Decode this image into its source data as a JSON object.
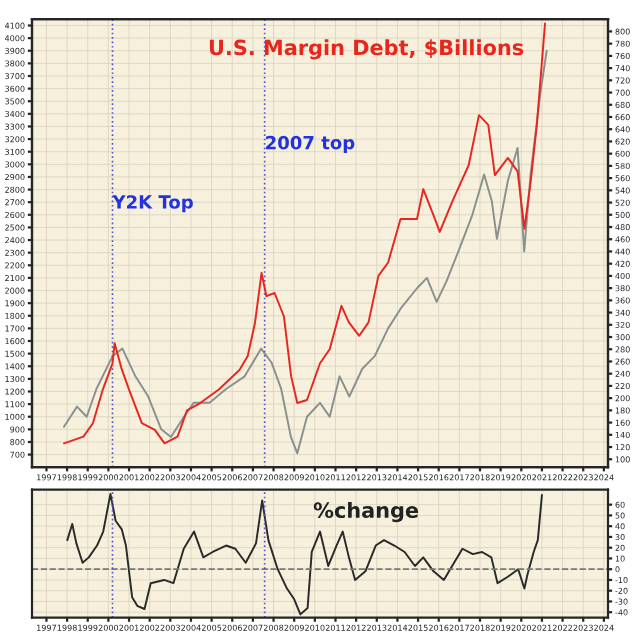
{
  "chart_data": [
    {
      "type": "line",
      "title": "U.S. Margin Debt, $Billions",
      "grid": true,
      "legend": false,
      "xlim": [
        1996.3,
        2024.2
      ],
      "xticks": [
        1997,
        1998,
        1999,
        2000,
        2001,
        2002,
        2003,
        2004,
        2005,
        2006,
        2007,
        2008,
        2009,
        2010,
        2011,
        2012,
        2013,
        2014,
        2015,
        2016,
        2017,
        2018,
        2019,
        2020,
        2021,
        2022,
        2023,
        2024
      ],
      "ylim": [
        600,
        4150
      ],
      "yticks": [
        700,
        800,
        900,
        1000,
        1100,
        1200,
        1300,
        1400,
        1500,
        1600,
        1700,
        1800,
        1900,
        2000,
        2100,
        2200,
        2300,
        2400,
        2500,
        2600,
        2700,
        2800,
        2900,
        3000,
        3100,
        3200,
        3300,
        3400,
        3500,
        3600,
        3700,
        3800,
        3900,
        4000,
        4100
      ],
      "y2lim": [
        87,
        820
      ],
      "y2ticks": [
        100,
        120,
        140,
        160,
        180,
        200,
        220,
        240,
        260,
        280,
        300,
        320,
        340,
        360,
        380,
        400,
        420,
        440,
        460,
        480,
        500,
        520,
        540,
        560,
        580,
        600,
        620,
        640,
        660,
        680,
        700,
        720,
        740,
        760,
        780,
        800
      ],
      "series": [
        {
          "color": "#8a9090",
          "x": [
            1997.85,
            1998.48,
            1998.95,
            1999.42,
            2000.2,
            2000.68,
            2001.31,
            2001.93,
            2002.56,
            2003.03,
            2003.66,
            2004.13,
            2004.9,
            2005.7,
            2006.6,
            2007.4,
            2007.9,
            2008.37,
            2008.84,
            2009.15,
            2009.62,
            2010.25,
            2010.72,
            2011.2,
            2011.67,
            2012.3,
            2012.9,
            2013.55,
            2014.17,
            2014.96,
            2015.43,
            2015.9,
            2016.37,
            2017.0,
            2017.63,
            2018.2,
            2018.57,
            2018.82,
            2019.35,
            2019.82,
            2020.14,
            2020.45,
            2020.92,
            2021.23
          ],
          "values": [
            920,
            1080,
            1000,
            1220,
            1480,
            1540,
            1320,
            1160,
            900,
            840,
            1000,
            1110,
            1110,
            1220,
            1320,
            1540,
            1430,
            1220,
            840,
            710,
            1000,
            1110,
            1000,
            1320,
            1160,
            1380,
            1480,
            1700,
            1860,
            2020,
            2100,
            1910,
            2070,
            2330,
            2600,
            2920,
            2710,
            2410,
            2870,
            3130,
            2310,
            2920,
            3560,
            3900
          ]
        },
        {
          "color": "#e8261e",
          "axis": "y2",
          "x": [
            1997.85,
            1998.79,
            1999.25,
            1999.73,
            2000.2,
            2000.3,
            2000.65,
            2001.0,
            2001.62,
            2002.25,
            2002.72,
            2003.35,
            2003.81,
            2004.45,
            2005.35,
            2006.35,
            2006.75,
            2007.1,
            2007.42,
            2007.65,
            2008.05,
            2008.5,
            2008.85,
            2009.15,
            2009.62,
            2010.25,
            2010.72,
            2011.29,
            2011.65,
            2012.15,
            2012.6,
            2013.08,
            2013.55,
            2014.15,
            2014.95,
            2015.25,
            2015.75,
            2016.05,
            2016.65,
            2017.45,
            2017.95,
            2018.4,
            2018.72,
            2019.35,
            2019.82,
            2020.15,
            2020.45,
            2020.75,
            2021.08,
            2021.15
          ],
          "values": [
            126,
            137,
            159,
            214,
            257,
            290,
            247,
            214,
            159,
            148,
            126,
            137,
            180,
            192,
            214,
            246,
            269,
            323,
            405,
            367,
            372,
            334,
            236,
            192,
            197,
            257,
            280,
            351,
            324,
            302,
            324,
            400,
            422,
            493,
            493,
            542,
            499,
            472,
            521,
            581,
            663,
            647,
            565,
            593,
            571,
            477,
            553,
            646,
            784,
            813
          ]
        }
      ],
      "annotations": [
        {
          "text": "Y2K Top",
          "x": 2000.2,
          "y": 2620
        },
        {
          "text": "2007 top",
          "x": 2007.57,
          "y": 3090
        }
      ],
      "ref_lines": [
        {
          "axis": "x",
          "value": 2000.2,
          "color": "#5555cc",
          "line_style": "dotted"
        },
        {
          "axis": "x",
          "value": 2007.57,
          "color": "#5555cc",
          "line_style": "dotted"
        }
      ]
    },
    {
      "type": "line",
      "title": "%change",
      "grid": true,
      "legend": false,
      "xlim": [
        1996.3,
        2024.2
      ],
      "xticks": [
        1997,
        1998,
        1999,
        2000,
        2001,
        2002,
        2003,
        2004,
        2005,
        2006,
        2007,
        2008,
        2009,
        2010,
        2011,
        2012,
        2013,
        2014,
        2015,
        2016,
        2017,
        2018,
        2019,
        2020,
        2021,
        2022,
        2023,
        2024
      ],
      "ylim": [
        -45,
        74
      ],
      "yticks": [
        -40,
        -30,
        -20,
        -10,
        0,
        10,
        20,
        30,
        40,
        50,
        60
      ],
      "series": [
        {
          "color": "#2a2a2a",
          "x": [
            1998.01,
            1998.25,
            1998.45,
            1998.75,
            1999.05,
            1999.45,
            1999.75,
            2000.1,
            2000.35,
            2000.65,
            2000.85,
            2001.15,
            2001.4,
            2001.75,
            2002.05,
            2002.7,
            2003.15,
            2003.65,
            2004.15,
            2004.6,
            2005.05,
            2005.7,
            2006.15,
            2006.65,
            2007.15,
            2007.45,
            2007.75,
            2008.2,
            2008.65,
            2009.0,
            2009.3,
            2009.65,
            2009.85,
            2010.25,
            2010.65,
            2011.05,
            2011.35,
            2011.65,
            2011.95,
            2012.45,
            2012.95,
            2013.35,
            2013.85,
            2014.35,
            2014.85,
            2015.25,
            2015.75,
            2016.25,
            2016.65,
            2017.15,
            2017.65,
            2018.1,
            2018.55,
            2018.85,
            2019.35,
            2019.85,
            2020.15,
            2020.3,
            2020.6,
            2020.8,
            2021.0
          ],
          "values": [
            27,
            42,
            24,
            6,
            11,
            22,
            35,
            70,
            45,
            37,
            22,
            -26,
            -34,
            -37,
            -13,
            -10,
            -13,
            19,
            35,
            11,
            16,
            22,
            19,
            6,
            24,
            64,
            27,
            0,
            -18,
            -28,
            -42,
            -36,
            16,
            35,
            3,
            22,
            35,
            11,
            -10,
            -2,
            22,
            27,
            22,
            16,
            3,
            11,
            -2,
            -10,
            3,
            19,
            14,
            16,
            11,
            -13,
            -7,
            0,
            -18,
            -5,
            16,
            27,
            69
          ]
        }
      ],
      "ref_lines": [
        {
          "axis": "y",
          "value": 0,
          "color": "#777777",
          "line_style": "dashed"
        },
        {
          "axis": "x",
          "value": 2000.2,
          "color": "#5555cc",
          "line_style": "dotted"
        },
        {
          "axis": "x",
          "value": 2007.57,
          "color": "#5555cc",
          "line_style": "dotted"
        }
      ]
    }
  ]
}
